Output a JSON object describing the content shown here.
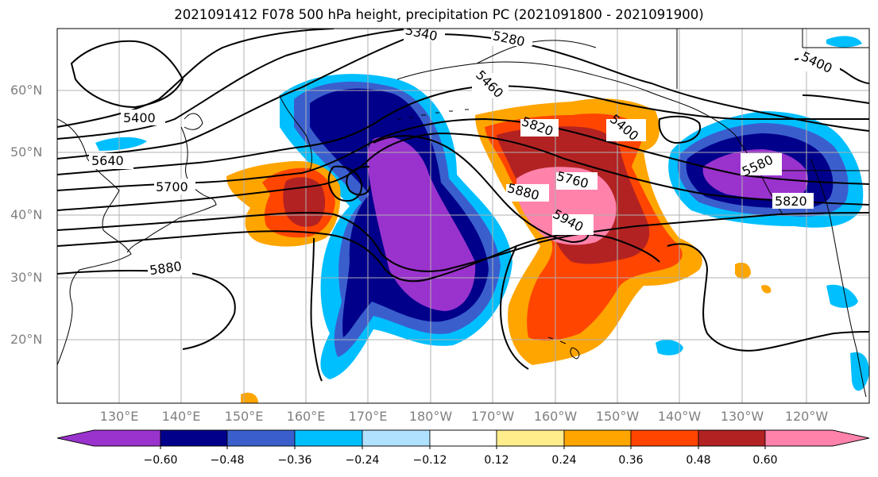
{
  "title": "2021091412 F078 500 hPa height, precipitation PC (2021091800 - 2021091900)",
  "lat_labels": [
    "60°N",
    "50°N",
    "40°N",
    "30°N",
    "20°N"
  ],
  "lon_labels": [
    "130°E",
    "140°E",
    "150°E",
    "160°E",
    "170°E",
    "180°W",
    "170°W",
    "160°W",
    "150°W",
    "140°W",
    "130°W",
    "120°W"
  ],
  "contour_labels": [
    "5340",
    "5280",
    "5460",
    "5400",
    "5820",
    "5400",
    "5640",
    "5700",
    "5880",
    "5880",
    "5760",
    "5940",
    "5580",
    "5820",
    "5400"
  ],
  "colorbar": {
    "ticks": [
      "−0.60",
      "−0.48",
      "−0.36",
      "−0.24",
      "−0.12",
      "0.12",
      "0.24",
      "0.36",
      "0.48",
      "0.60"
    ],
    "colors": [
      "#9a32cd",
      "#00008b",
      "#3a5fcd",
      "#00bfff",
      "#b0e2ff",
      "#ffffff",
      "#ffec8b",
      "#ffa500",
      "#ff4500",
      "#b22222",
      "#ff82ab"
    ]
  },
  "colors": {
    "land_line": "#000000",
    "grid": "#b0b0b0",
    "contour": "#000000"
  }
}
